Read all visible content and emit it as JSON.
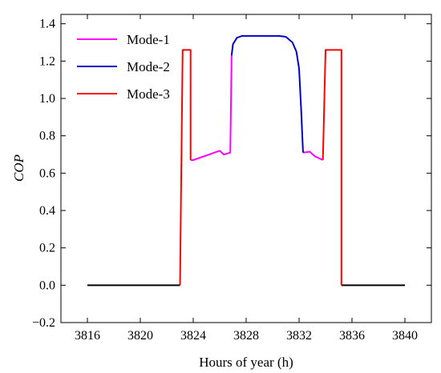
{
  "chart_data": {
    "type": "line",
    "xlabel": "Hours of year (h)",
    "ylabel": "COP",
    "xlim": [
      3814,
      3842
    ],
    "ylim": [
      -0.2,
      1.45
    ],
    "xticks": [
      3816,
      3820,
      3824,
      3828,
      3832,
      3836,
      3840
    ],
    "yticks": [
      -0.2,
      0.0,
      0.2,
      0.4,
      0.6,
      0.8,
      1.0,
      1.2,
      1.4
    ],
    "ytick_labels": [
      "−0.2",
      "0.0",
      "0.2",
      "0.4",
      "0.6",
      "0.8",
      "1.0",
      "1.2",
      "1.4"
    ],
    "grid": false,
    "legend_position": "top-left",
    "series": [
      {
        "name": "Mode-1",
        "color": "#ff00ff",
        "segments": [
          [
            [
              3823.8,
              0.67
            ],
            [
              3824.0,
              0.67
            ],
            [
              3825.0,
              0.695
            ],
            [
              3826.0,
              0.72
            ],
            [
              3826.3,
              0.7
            ],
            [
              3826.8,
              0.71
            ],
            [
              3826.9,
              1.23
            ]
          ],
          [
            [
              3832.3,
              0.71
            ],
            [
              3832.8,
              0.715
            ],
            [
              3833.2,
              0.69
            ],
            [
              3833.8,
              0.67
            ]
          ]
        ]
      },
      {
        "name": "Mode-2",
        "color": "#0000cc",
        "segments": [
          [
            [
              3826.9,
              1.23
            ],
            [
              3827.0,
              1.29
            ],
            [
              3827.3,
              1.325
            ],
            [
              3827.7,
              1.335
            ],
            [
              3829.0,
              1.335
            ],
            [
              3830.5,
              1.335
            ],
            [
              3831.0,
              1.33
            ],
            [
              3831.5,
              1.3
            ],
            [
              3831.8,
              1.25
            ],
            [
              3832.0,
              1.16
            ],
            [
              3832.15,
              0.95
            ],
            [
              3832.3,
              0.71
            ]
          ]
        ]
      },
      {
        "name": "Mode-3",
        "color": "#ff0000",
        "segments": [
          [
            [
              3823.0,
              0.0
            ],
            [
              3823.2,
              1.26
            ],
            [
              3823.8,
              1.26
            ],
            [
              3823.8,
              0.67
            ]
          ],
          [
            [
              3833.8,
              0.67
            ],
            [
              3834.0,
              1.26
            ],
            [
              3835.2,
              1.26
            ],
            [
              3835.2,
              0.0
            ]
          ]
        ]
      },
      {
        "name": "",
        "color": "#000000",
        "segments": [
          [
            [
              3816.0,
              0.0
            ],
            [
              3823.0,
              0.0
            ]
          ],
          [
            [
              3835.2,
              0.0
            ],
            [
              3840.0,
              0.0
            ]
          ]
        ]
      }
    ],
    "legend": [
      {
        "label": "Mode-1",
        "color": "#ff00ff"
      },
      {
        "label": "Mode-2",
        "color": "#0000cc"
      },
      {
        "label": "Mode-3",
        "color": "#ff0000"
      }
    ]
  }
}
